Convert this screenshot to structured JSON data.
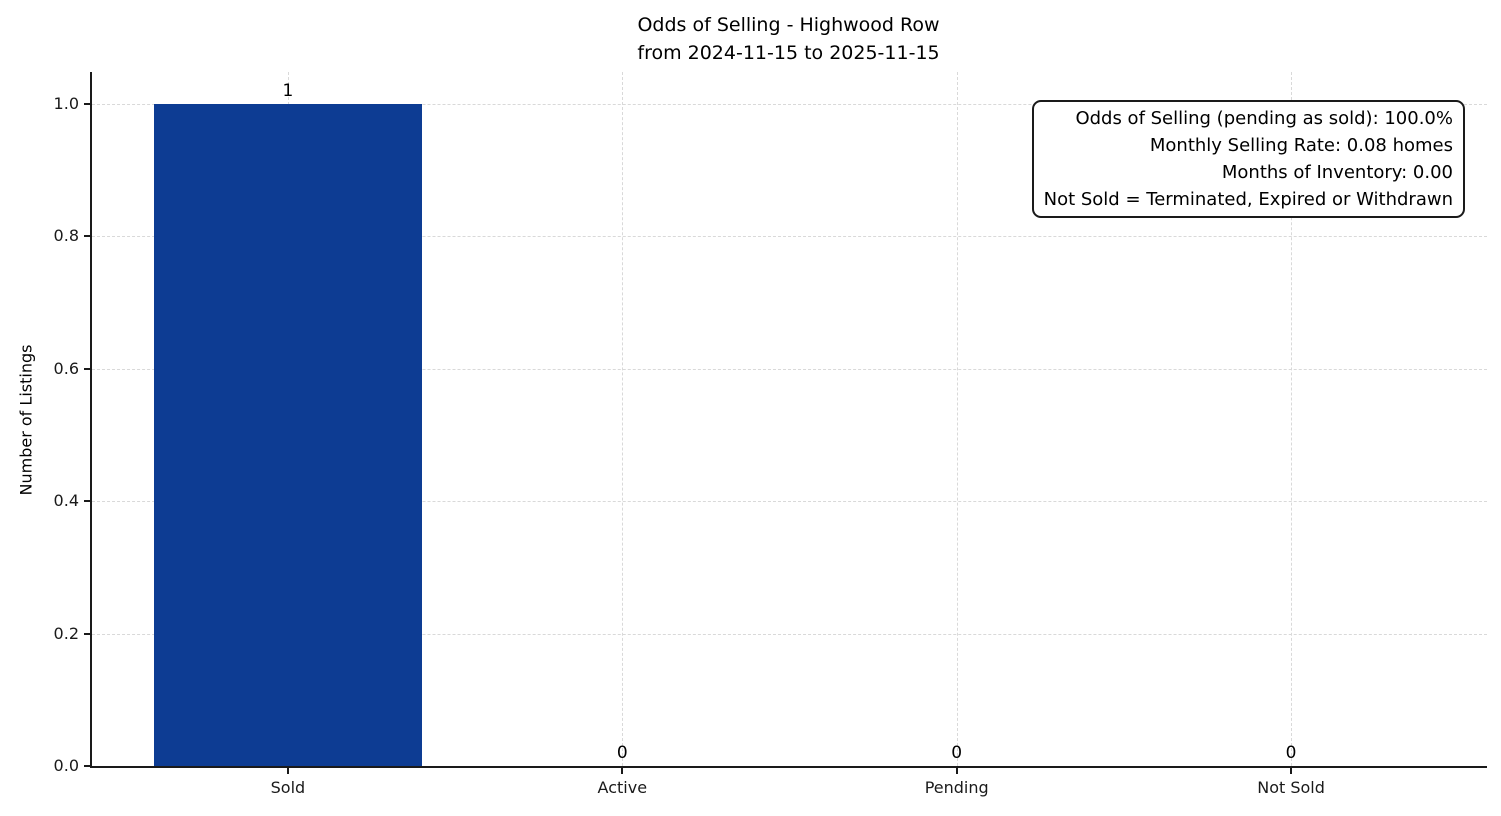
{
  "figure": {
    "title_line1": "Odds of Selling - Highwood Row",
    "title_line2": "from 2024-11-15 to 2025-11-15"
  },
  "chart_data": {
    "type": "bar",
    "title": "Odds of Selling - Highwood Row",
    "subtitle": "from 2024-11-15 to 2025-11-15",
    "categories": [
      "Sold",
      "Active",
      "Pending",
      "Not Sold"
    ],
    "values": [
      1,
      0,
      0,
      0
    ],
    "bar_value_labels": [
      "1",
      "0",
      "0",
      "0"
    ],
    "xlabel": "",
    "ylabel": "Number of Listings",
    "ylim": [
      0,
      1.048
    ],
    "yticks": [
      0.0,
      0.2,
      0.4,
      0.6,
      0.8,
      1.0
    ],
    "ytick_labels": [
      "0.0",
      "0.2",
      "0.4",
      "0.6",
      "0.8",
      "1.0"
    ],
    "grid": true,
    "grid_style": "dashed",
    "legend_position": "none",
    "bar_color": "#0d3c93",
    "bar_width_fraction": 0.8,
    "annotation_box": {
      "lines": [
        "Odds of Selling (pending as sold): 100.0%",
        "Monthly Selling Rate: 0.08 homes",
        "Months of Inventory: 0.00",
        "Not Sold = Terminated, Expired or Withdrawn"
      ]
    }
  }
}
